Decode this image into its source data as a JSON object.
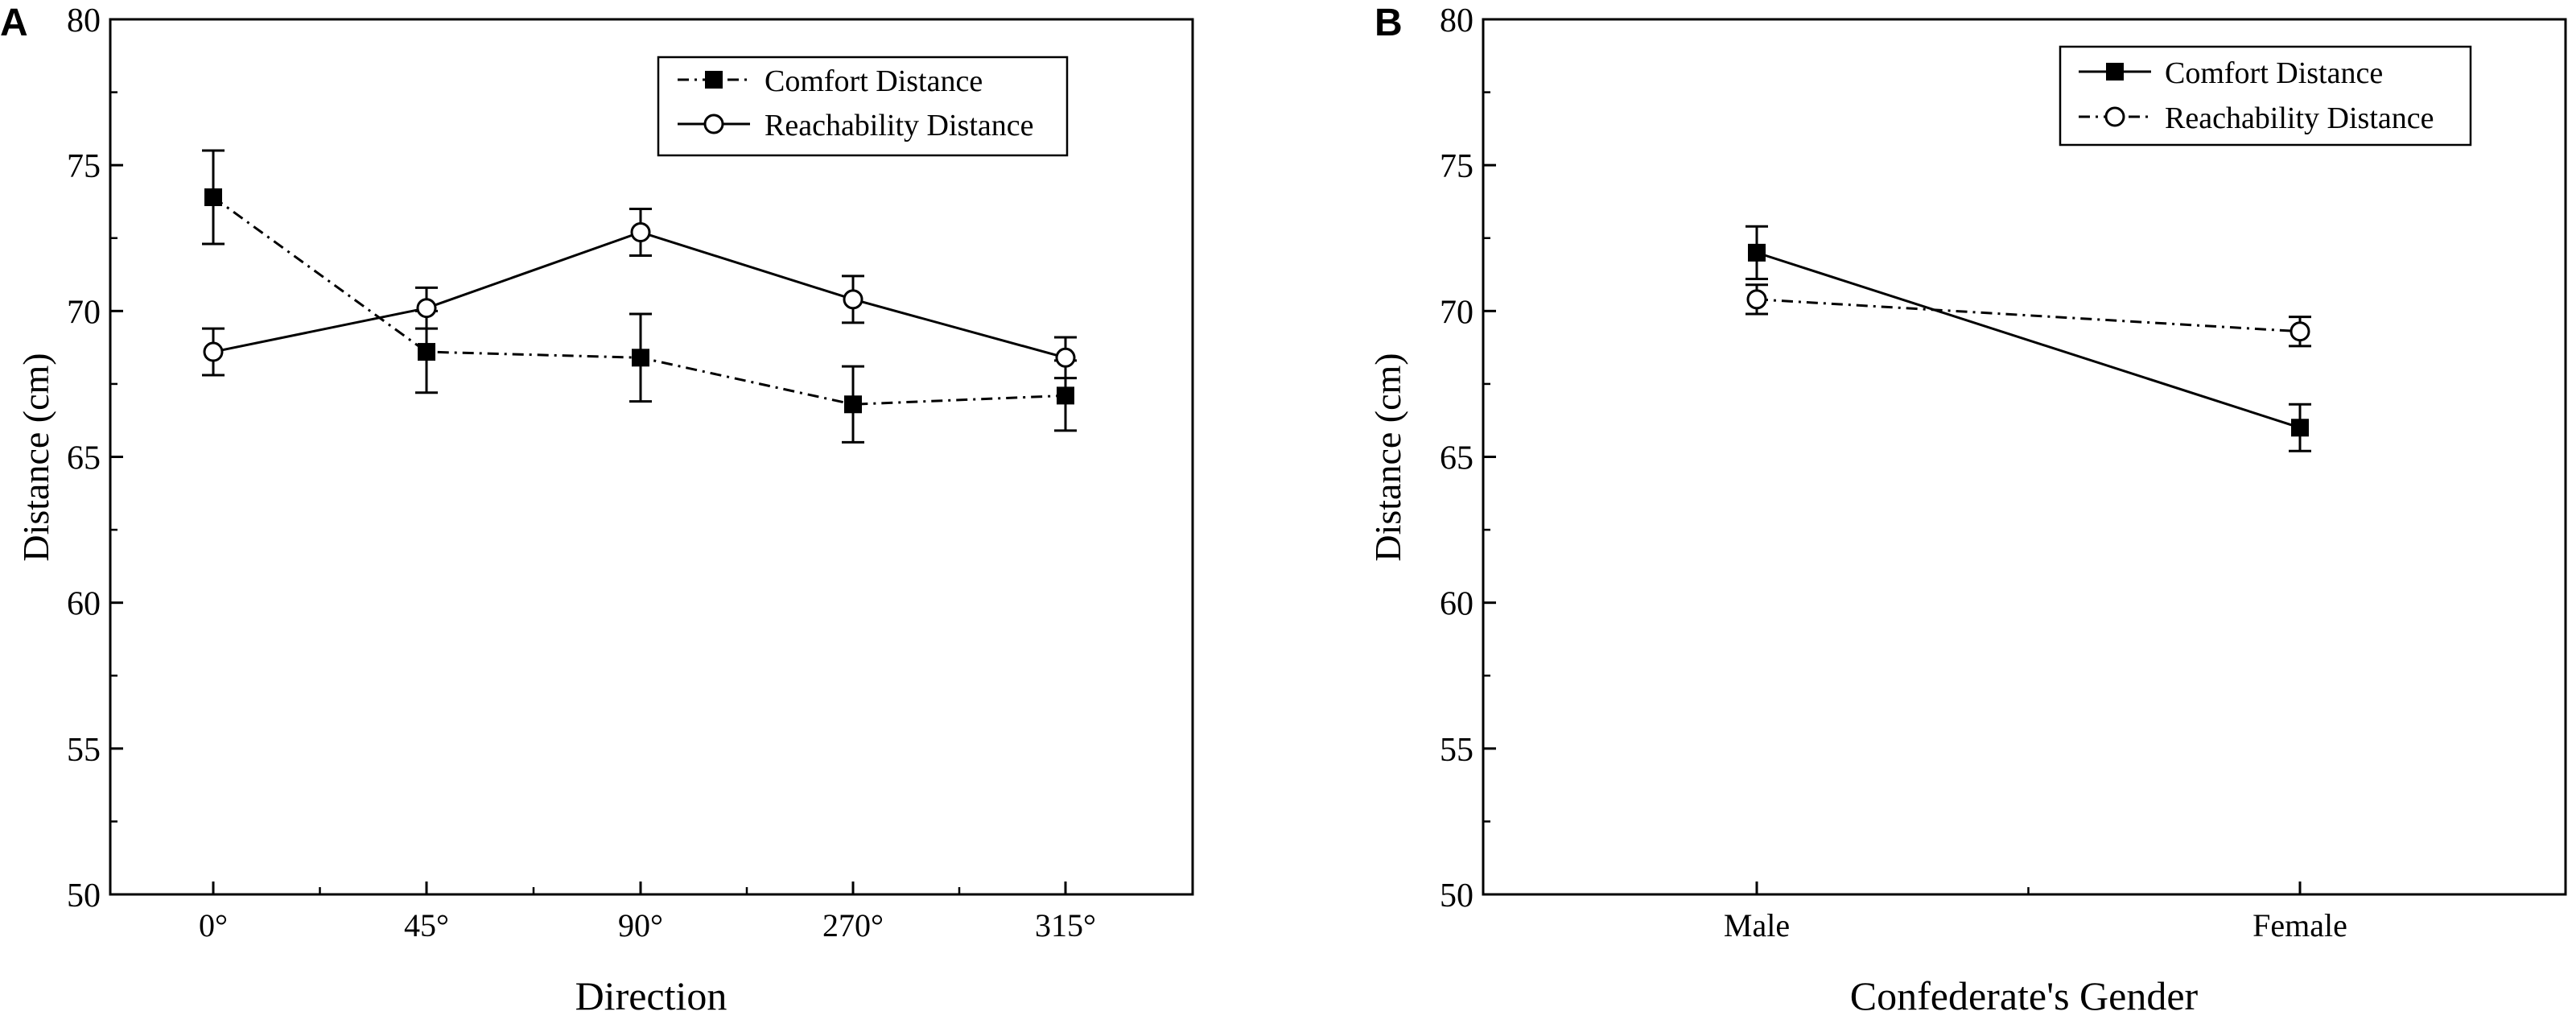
{
  "figure": {
    "panels": [
      "A",
      "B"
    ]
  },
  "chart_data": [
    {
      "panel": "A",
      "type": "line",
      "xlabel": "Direction",
      "ylabel": "Distance (cm)",
      "categories": [
        "0°",
        "45°",
        "90°",
        "270°",
        "315°"
      ],
      "ylim": [
        50,
        80
      ],
      "yticks": [
        50,
        55,
        60,
        65,
        70,
        75,
        80
      ],
      "grid": false,
      "legend_position": "top-right",
      "series": [
        {
          "name": "Comfort Distance",
          "values": [
            73.9,
            68.6,
            68.4,
            66.8,
            67.1
          ],
          "errors": [
            1.6,
            1.4,
            1.5,
            1.3,
            1.2
          ],
          "marker": "filled-square",
          "line_style": "dash-dot",
          "color": "#000000"
        },
        {
          "name": "Reachability Distance",
          "values": [
            68.6,
            70.1,
            72.7,
            70.4,
            68.4
          ],
          "errors": [
            0.8,
            0.7,
            0.8,
            0.8,
            0.7
          ],
          "marker": "open-circle",
          "line_style": "solid",
          "color": "#000000"
        }
      ]
    },
    {
      "panel": "B",
      "type": "line",
      "xlabel": "Confederate's Gender",
      "ylabel": "Distance (cm)",
      "categories": [
        "Male",
        "Female"
      ],
      "ylim": [
        50,
        80
      ],
      "yticks": [
        50,
        55,
        60,
        65,
        70,
        75,
        80
      ],
      "grid": false,
      "legend_position": "top-right",
      "series": [
        {
          "name": "Comfort Distance",
          "values": [
            72.0,
            66.0
          ],
          "errors": [
            0.9,
            0.8
          ],
          "marker": "filled-square",
          "line_style": "solid",
          "color": "#000000"
        },
        {
          "name": "Reachability Distance",
          "values": [
            70.4,
            69.3
          ],
          "errors": [
            0.5,
            0.5
          ],
          "marker": "open-circle",
          "line_style": "dash-dot",
          "color": "#000000"
        }
      ]
    }
  ]
}
